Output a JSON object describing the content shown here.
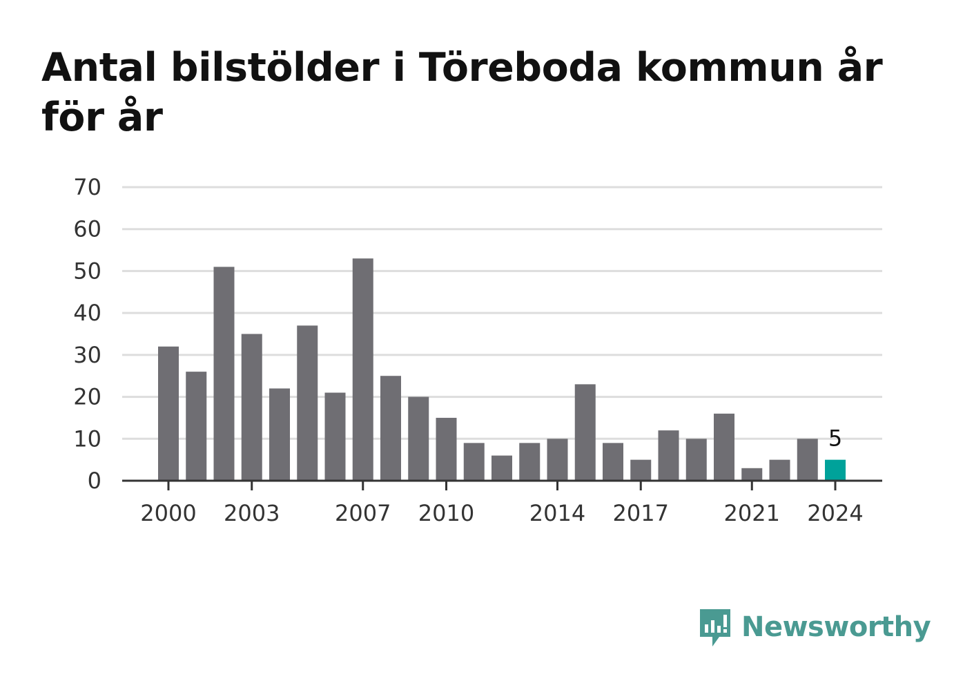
{
  "chart_data": {
    "type": "bar",
    "title": "Antal bilstölder i Töreboda kommun år för år",
    "categories": [
      "2000",
      "2001",
      "2002",
      "2003",
      "2004",
      "2005",
      "2006",
      "2007",
      "2008",
      "2009",
      "2010",
      "2011",
      "2012",
      "2013",
      "2014",
      "2015",
      "2016",
      "2017",
      "2018",
      "2019",
      "2020",
      "2021",
      "2022",
      "2023",
      "2024"
    ],
    "values": [
      32,
      26,
      51,
      35,
      22,
      37,
      21,
      53,
      25,
      20,
      15,
      9,
      6,
      9,
      10,
      23,
      9,
      5,
      12,
      10,
      16,
      3,
      5,
      10,
      5
    ],
    "x_tick_labels": [
      "2000",
      "2003",
      "2007",
      "2010",
      "2014",
      "2017",
      "2021",
      "2024"
    ],
    "y_ticks": [
      0,
      10,
      20,
      30,
      40,
      50,
      60,
      70
    ],
    "ylim": [
      0,
      70
    ],
    "xlabel": "",
    "ylabel": "",
    "grid": true,
    "highlight": {
      "category": "2024",
      "label": "5"
    },
    "colors": {
      "bar": "#6f6e73",
      "highlight": "#00a29a",
      "grid": "#dddddd",
      "axis": "#333333"
    }
  },
  "brand": {
    "name": "Newsworthy",
    "icon": "bar-chart-speech-bubble-icon",
    "color": "#4a9a92"
  }
}
